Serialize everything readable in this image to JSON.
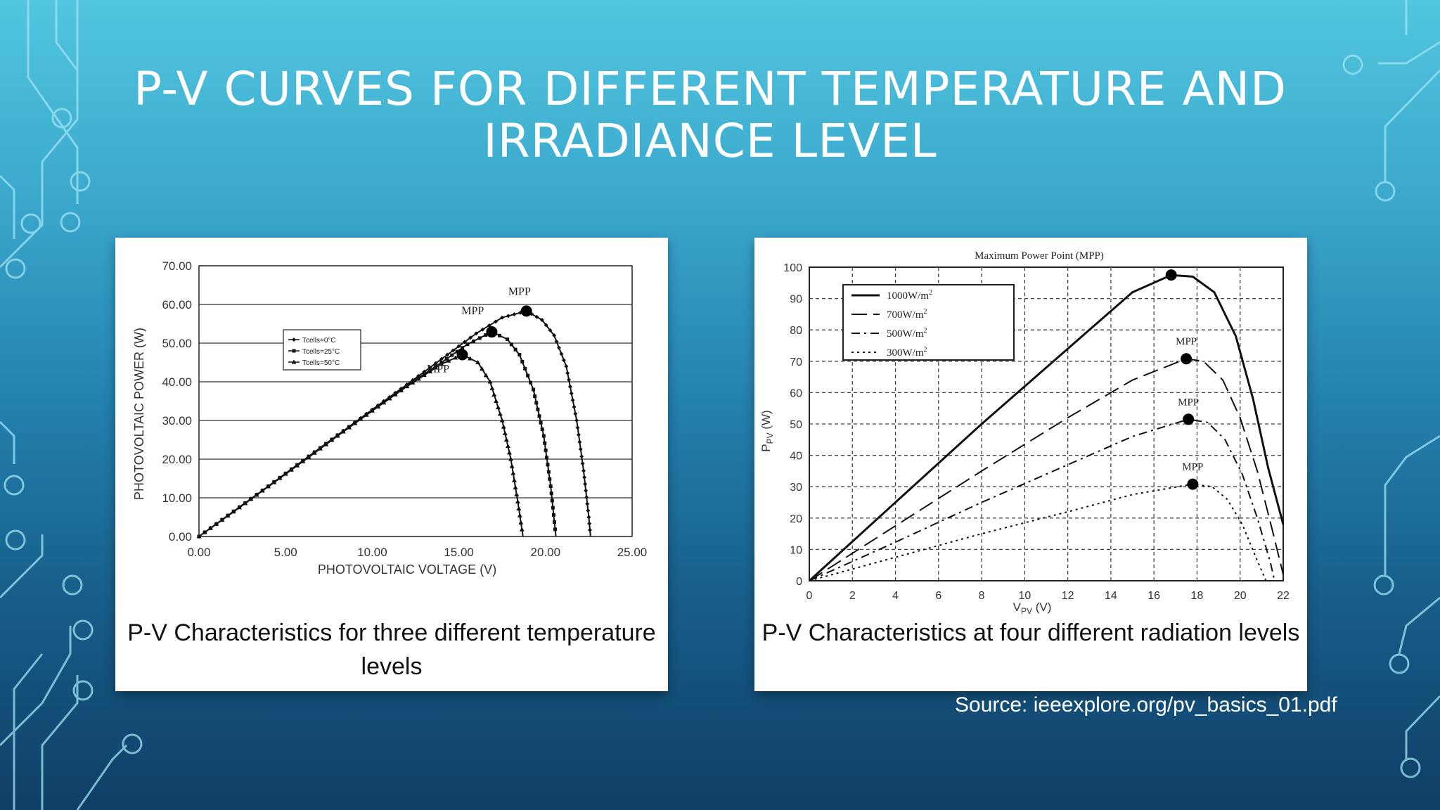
{
  "slide": {
    "title": "P-V  CURVES FOR DIFFERENT TEMPERATURE AND IRRADIANCE LEVEL",
    "source": "Source: ieeexplore.org/pv_basics_01.pdf",
    "background_color": "#2a8fbb",
    "accent_color": "#ffffff"
  },
  "chart_data": [
    {
      "type": "line",
      "caption": "P-V Characteristics for three different temperature levels",
      "xlabel": "PHOTOVOLTAIC VOLTAGE (V)",
      "ylabel": "PHOTOVOLTAIC POWER (W)",
      "xlim": [
        0,
        25
      ],
      "ylim": [
        0,
        70
      ],
      "xticks": [
        "0.00",
        "5.00",
        "10.00",
        "15.00",
        "20.00",
        "25.00"
      ],
      "yticks": [
        "0.00",
        "10.00",
        "20.00",
        "30.00",
        "40.00",
        "50.00",
        "60.00",
        "70.00"
      ],
      "grid": "horizontal",
      "legend_position": "upper-left",
      "mpp_label": "MPP",
      "series": [
        {
          "name": "Tcells=0°C",
          "marker": "diamond",
          "points": [
            [
              0,
              0
            ],
            [
              2,
              6.5
            ],
            [
              4,
              13
            ],
            [
              6,
              19.6
            ],
            [
              8,
              26.2
            ],
            [
              10,
              32.8
            ],
            [
              12,
              39.3
            ],
            [
              14,
              45.9
            ],
            [
              16,
              52.5
            ],
            [
              17.5,
              56.6
            ],
            [
              18.9,
              58.3
            ],
            [
              19.8,
              56
            ],
            [
              20.5,
              52
            ],
            [
              21.2,
              44
            ],
            [
              21.8,
              30
            ],
            [
              22.2,
              17
            ],
            [
              22.5,
              5
            ],
            [
              22.6,
              0
            ]
          ],
          "mpp": [
            18.9,
            58.3
          ]
        },
        {
          "name": "Tcells=25°C",
          "marker": "square",
          "points": [
            [
              0,
              0
            ],
            [
              2,
              6.5
            ],
            [
              4,
              13
            ],
            [
              6,
              19.6
            ],
            [
              8,
              26.2
            ],
            [
              10,
              32.6
            ],
            [
              12,
              39
            ],
            [
              14,
              45
            ],
            [
              15.5,
              49.7
            ],
            [
              16.9,
              52.9
            ],
            [
              17.8,
              51
            ],
            [
              18.5,
              47
            ],
            [
              19.3,
              38
            ],
            [
              19.9,
              26
            ],
            [
              20.3,
              13
            ],
            [
              20.6,
              0
            ]
          ],
          "mpp": [
            16.9,
            52.9
          ]
        },
        {
          "name": "Tcells=50°C",
          "marker": "triangle",
          "points": [
            [
              0,
              0
            ],
            [
              2,
              6.4
            ],
            [
              4,
              12.9
            ],
            [
              6,
              19.4
            ],
            [
              8,
              26
            ],
            [
              10,
              32.5
            ],
            [
              12,
              38.8
            ],
            [
              14,
              44.6
            ],
            [
              15.2,
              47
            ],
            [
              16.1,
              45
            ],
            [
              16.8,
              40
            ],
            [
              17.5,
              30
            ],
            [
              18,
              20
            ],
            [
              18.4,
              9
            ],
            [
              18.7,
              0
            ]
          ],
          "mpp": [
            15.2,
            47
          ]
        }
      ]
    },
    {
      "type": "line",
      "caption": "P-V Characteristics at four different radiation levels",
      "title": "Maximum Power Point (MPP)",
      "xlabel": "V",
      "xlabel_sub": "PV",
      "xlabel_unit": "(V)",
      "ylabel": "P",
      "ylabel_sub": "PV",
      "ylabel_unit": "(W)",
      "xlim": [
        0,
        22
      ],
      "ylim": [
        0,
        100
      ],
      "xticks": [
        "0",
        "2",
        "4",
        "6",
        "8",
        "10",
        "12",
        "14",
        "16",
        "18",
        "20",
        "22"
      ],
      "yticks": [
        "0",
        "10",
        "20",
        "30",
        "40",
        "50",
        "60",
        "70",
        "80",
        "90",
        "100"
      ],
      "grid": "dashed",
      "legend_position": "upper-left",
      "mpp_label": "MPP",
      "series": [
        {
          "name": "1000W/m",
          "sup": "2",
          "dash": "solid",
          "points": [
            [
              0,
              0
            ],
            [
              4,
              25
            ],
            [
              8,
              50
            ],
            [
              12,
              74
            ],
            [
              15,
              92
            ],
            [
              16.8,
              97.5
            ],
            [
              17.8,
              97
            ],
            [
              18.8,
              92
            ],
            [
              19.8,
              78
            ],
            [
              20.6,
              58
            ],
            [
              21.3,
              36
            ],
            [
              22,
              18
            ]
          ],
          "mpp": [
            16.8,
            97.5
          ]
        },
        {
          "name": "700W/m",
          "sup": "2",
          "dash": "long",
          "points": [
            [
              0,
              0
            ],
            [
              4,
              17.5
            ],
            [
              8,
              35
            ],
            [
              12,
              52
            ],
            [
              15,
              64
            ],
            [
              17.5,
              70.8
            ],
            [
              18.3,
              70
            ],
            [
              19.2,
              64
            ],
            [
              20,
              52
            ],
            [
              20.8,
              35
            ],
            [
              21.5,
              16
            ],
            [
              22,
              2
            ]
          ],
          "mpp": [
            17.5,
            70.8
          ]
        },
        {
          "name": "500W/m",
          "sup": "2",
          "dash": "dashdot",
          "points": [
            [
              0,
              0
            ],
            [
              4,
              12.3
            ],
            [
              8,
              25
            ],
            [
              12,
              37
            ],
            [
              15,
              46
            ],
            [
              17.6,
              51.5
            ],
            [
              18.5,
              50.5
            ],
            [
              19.3,
              45
            ],
            [
              20.1,
              34
            ],
            [
              20.8,
              20
            ],
            [
              21.4,
              6
            ],
            [
              21.6,
              0
            ]
          ],
          "mpp": [
            17.6,
            51.5
          ]
        },
        {
          "name": "300W/m",
          "sup": "2",
          "dash": "dotted",
          "points": [
            [
              0,
              0
            ],
            [
              4,
              7.5
            ],
            [
              8,
              15
            ],
            [
              12,
              22
            ],
            [
              15,
              27.5
            ],
            [
              17.8,
              30.8
            ],
            [
              18.7,
              30
            ],
            [
              19.4,
              26
            ],
            [
              20.1,
              18
            ],
            [
              20.7,
              8
            ],
            [
              21.2,
              0
            ]
          ],
          "mpp": [
            17.8,
            30.8
          ]
        }
      ]
    }
  ]
}
